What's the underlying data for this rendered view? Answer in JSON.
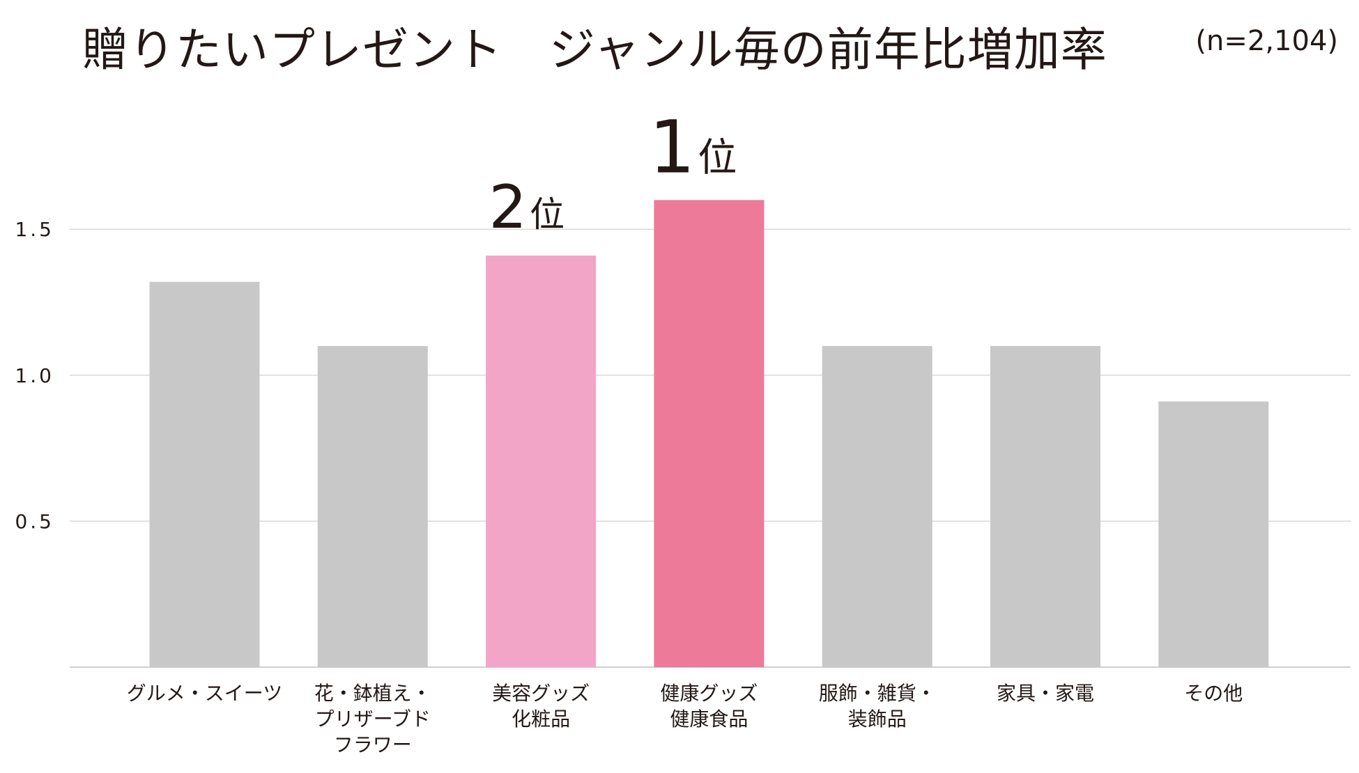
{
  "chart_data": {
    "type": "bar",
    "title": "贈りたいプレゼント　ジャンル毎の前年比増加率",
    "sample_size": "(n=2,104)",
    "categories": [
      [
        "グルメ・スイーツ"
      ],
      [
        "花・鉢植え・",
        "プリザーブド",
        "フラワー"
      ],
      [
        "美容グッズ",
        "化粧品"
      ],
      [
        "健康グッズ",
        "健康食品"
      ],
      [
        "服飾・雑貨・",
        "装飾品"
      ],
      [
        "家具・家電"
      ],
      [
        "その他"
      ]
    ],
    "values": [
      1.32,
      1.1,
      1.41,
      1.6,
      1.1,
      1.1,
      0.91
    ],
    "bar_colors": [
      "#c8c8c8",
      "#c8c8c8",
      "#f3a5c8",
      "#ee7a9a",
      "#c8c8c8",
      "#c8c8c8",
      "#c8c8c8"
    ],
    "rank_labels": [
      {
        "category_index": 2,
        "number": "2",
        "suffix": "位"
      },
      {
        "category_index": 3,
        "number": "1",
        "suffix": "位"
      }
    ],
    "yticks": [
      "0.5",
      "1.0",
      "1.5"
    ],
    "ylim": [
      0,
      1.8
    ],
    "grid": true,
    "colors": {
      "grid": "#d9d9d9",
      "axis": "#bfbfbf",
      "text": "#231815"
    }
  }
}
